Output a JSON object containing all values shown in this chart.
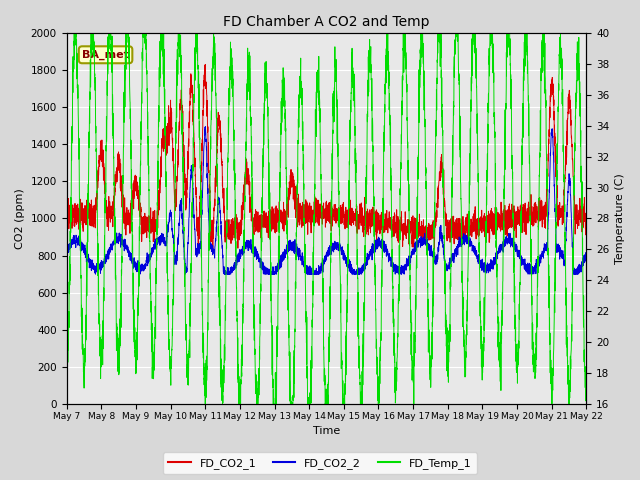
{
  "title": "FD Chamber A CO2 and Temp",
  "xlabel": "Time",
  "ylabel_left": "CO2 (ppm)",
  "ylabel_right": "Temperature (C)",
  "ylim_left": [
    0,
    2000
  ],
  "ylim_right": [
    16,
    40
  ],
  "yticks_left": [
    0,
    200,
    400,
    600,
    800,
    1000,
    1200,
    1400,
    1600,
    1800,
    2000
  ],
  "yticks_right": [
    16,
    18,
    20,
    22,
    24,
    26,
    28,
    30,
    32,
    34,
    36,
    38,
    40
  ],
  "color_co2_1": "#dd0000",
  "color_co2_2": "#0000dd",
  "color_temp": "#00dd00",
  "legend_labels": [
    "FD_CO2_1",
    "FD_CO2_2",
    "FD_Temp_1"
  ],
  "annotation_text": "BA_met",
  "bg_color": "#e8e8e8",
  "grid_color": "#ffffff",
  "n_points": 4000,
  "x_tick_labels": [
    "May 7",
    "May 8",
    "May 9",
    "May 10",
    "May 11",
    "May 12",
    "May 13",
    "May 14",
    "May 15",
    "May 16",
    "May 17",
    "May 18",
    "May 19",
    "May 20",
    "May 21",
    "May 22"
  ]
}
